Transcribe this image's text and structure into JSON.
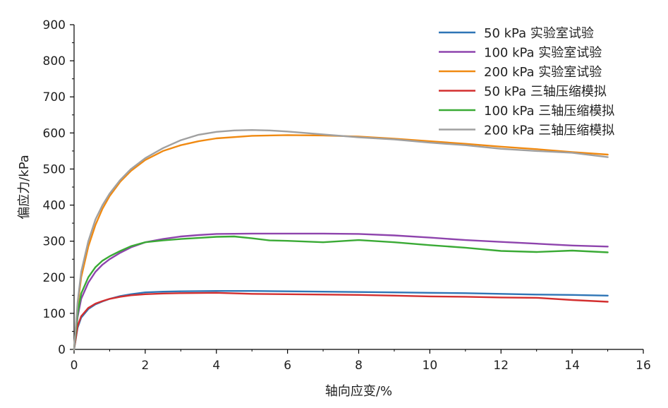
{
  "chart_data": {
    "type": "line",
    "xlabel": "轴向应变/%",
    "ylabel": "偏应力/kPa",
    "xlim": [
      0,
      16
    ],
    "ylim": [
      0,
      900
    ],
    "xticks": [
      0,
      2,
      4,
      6,
      8,
      10,
      12,
      14,
      16
    ],
    "yticks": [
      0,
      100,
      200,
      300,
      400,
      500,
      600,
      700,
      800,
      900
    ],
    "grid": false,
    "legend_position": "top-right",
    "series": [
      {
        "name": "50 kPa  实验室试验",
        "color": "#2e75b6",
        "x": [
          0,
          0.1,
          0.2,
          0.4,
          0.6,
          0.8,
          1.0,
          1.3,
          1.6,
          2.0,
          2.5,
          3.0,
          4.0,
          5.0,
          6.0,
          7.0,
          8.0,
          9.0,
          10.0,
          11.0,
          12.0,
          13.0,
          14.0,
          15.0
        ],
        "y": [
          0,
          60,
          88,
          112,
          125,
          133,
          140,
          148,
          153,
          158,
          160,
          161,
          162,
          162,
          161,
          160,
          159,
          158,
          157,
          156,
          154,
          152,
          151,
          149
        ]
      },
      {
        "name": "100 kPa 实验室试验",
        "color": "#8e44ad",
        "x": [
          0,
          0.1,
          0.2,
          0.4,
          0.6,
          0.8,
          1.0,
          1.3,
          1.6,
          2.0,
          2.5,
          3.0,
          3.5,
          4.0,
          5.0,
          6.0,
          7.0,
          8.0,
          9.0,
          10.0,
          11.0,
          12.0,
          13.0,
          14.0,
          15.0
        ],
        "y": [
          0,
          90,
          140,
          185,
          215,
          235,
          250,
          268,
          283,
          297,
          306,
          313,
          317,
          320,
          321,
          321,
          321,
          320,
          316,
          310,
          303,
          298,
          293,
          288,
          285
        ]
      },
      {
        "name": "200 kPa 实验室试验",
        "color": "#f08a12",
        "x": [
          0,
          0.1,
          0.2,
          0.4,
          0.6,
          0.8,
          1.0,
          1.3,
          1.6,
          2.0,
          2.5,
          3.0,
          3.5,
          4.0,
          5.0,
          6.0,
          7.0,
          8.0,
          9.0,
          10.0,
          11.0,
          12.0,
          13.0,
          14.0,
          15.0
        ],
        "y": [
          0,
          120,
          200,
          285,
          345,
          390,
          425,
          465,
          495,
          525,
          550,
          566,
          577,
          585,
          592,
          594,
          593,
          590,
          584,
          577,
          570,
          562,
          555,
          547,
          540
        ]
      },
      {
        "name": "50 kPa  三轴压缩模拟",
        "color": "#d32f2f",
        "x": [
          0,
          0.1,
          0.2,
          0.4,
          0.6,
          0.8,
          1.0,
          1.3,
          1.6,
          2.0,
          2.5,
          3.0,
          4.0,
          5.0,
          6.0,
          7.0,
          8.0,
          9.0,
          10.0,
          11.0,
          12.0,
          13.0,
          14.0,
          15.0
        ],
        "y": [
          0,
          65,
          92,
          115,
          127,
          134,
          140,
          146,
          150,
          153,
          155,
          156,
          157,
          154,
          153,
          152,
          151,
          149,
          147,
          146,
          144,
          143,
          137,
          132
        ]
      },
      {
        "name": "100 kPa 三轴压缩模拟",
        "color": "#3aaa35",
        "x": [
          0,
          0.1,
          0.2,
          0.4,
          0.6,
          0.8,
          1.0,
          1.3,
          1.6,
          2.0,
          2.5,
          3.0,
          3.5,
          4.0,
          4.5,
          5.0,
          5.5,
          6.0,
          7.0,
          8.0,
          9.0,
          10.0,
          11.0,
          12.0,
          13.0,
          14.0,
          15.0
        ],
        "y": [
          0,
          100,
          155,
          200,
          228,
          246,
          258,
          273,
          286,
          297,
          302,
          306,
          309,
          312,
          313,
          308,
          302,
          301,
          297,
          303,
          297,
          289,
          282,
          273,
          270,
          274,
          269
        ]
      },
      {
        "name": "200 kPa 三轴压缩模拟",
        "color": "#a0a0a0",
        "x": [
          0,
          0.1,
          0.2,
          0.4,
          0.6,
          0.8,
          1.0,
          1.3,
          1.6,
          2.0,
          2.5,
          3.0,
          3.5,
          4.0,
          4.5,
          5.0,
          5.5,
          6.0,
          7.0,
          8.0,
          9.0,
          10.0,
          11.0,
          12.0,
          13.0,
          14.0,
          15.0
        ],
        "y": [
          0,
          130,
          215,
          300,
          360,
          400,
          432,
          470,
          500,
          530,
          558,
          580,
          595,
          603,
          607,
          608,
          607,
          604,
          596,
          588,
          582,
          573,
          566,
          556,
          550,
          545,
          533
        ]
      }
    ]
  }
}
